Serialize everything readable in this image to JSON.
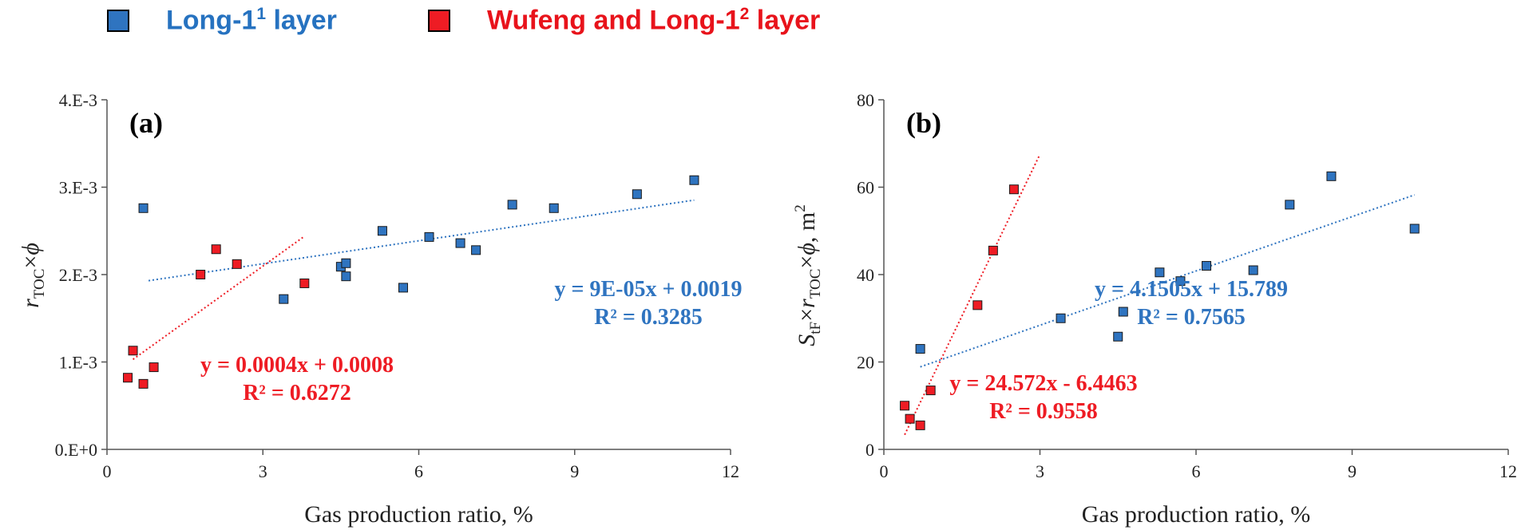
{
  "legend": [
    {
      "name": "Long-1",
      "sup": "1",
      "suffix": " layer",
      "color": "#2672c0",
      "swatch": "#2f74c0"
    },
    {
      "name": "Wufeng and Long-1",
      "sup": "2",
      "suffix": " layer",
      "color": "#e8131b",
      "swatch": "#ee1c24"
    }
  ],
  "chart_data": [
    {
      "type": "scatter",
      "panel_label": "(a)",
      "xlabel": "Gas production ratio, %",
      "ylabel": {
        "base": "r",
        "sub": "TOC",
        "rest": "×",
        "phi": "ϕ"
      },
      "xlim": [
        0,
        12
      ],
      "ylim": [
        0,
        0.004
      ],
      "xticks": [
        0,
        3,
        6,
        9,
        12
      ],
      "xtick_labels": [
        "0",
        "3",
        "6",
        "9",
        "12"
      ],
      "yticks": [
        0,
        0.001,
        0.002,
        0.003,
        0.004
      ],
      "ytick_labels": [
        "0.E+0",
        "1.E-3",
        "2.E-3",
        "3.E-3",
        "4.E-3"
      ],
      "series": [
        {
          "name": "Long-1¹ layer",
          "color": "#2f74c0",
          "x": [
            0.7,
            3.4,
            4.5,
            4.6,
            4.6,
            5.3,
            5.7,
            6.2,
            6.8,
            7.1,
            7.8,
            8.6,
            10.2,
            11.3
          ],
          "y": [
            0.00276,
            0.00172,
            0.00209,
            0.00213,
            0.00198,
            0.0025,
            0.00185,
            0.00243,
            0.00236,
            0.00228,
            0.0028,
            0.00276,
            0.00292,
            0.00308
          ],
          "trend_range": [
            0.8,
            11.3
          ],
          "equation": "y = 9E-05x + 0.0019",
          "r2": "R² = 0.3285"
        },
        {
          "name": "Wufeng and Long-1² layer",
          "color": "#ee1c24",
          "x": [
            0.4,
            0.5,
            0.7,
            0.9,
            1.8,
            2.1,
            2.5,
            3.8
          ],
          "y": [
            0.00082,
            0.00113,
            0.00075,
            0.00094,
            0.002,
            0.00229,
            0.00212,
            0.0019
          ],
          "trend_range": [
            0.5,
            3.8
          ],
          "equation": "y = 0.0004x + 0.0008",
          "r2": "R² = 0.6272"
        }
      ]
    },
    {
      "type": "scatter",
      "panel_label": "(b)",
      "xlabel": "Gas production ratio, %",
      "ylabel": {
        "pre": "S",
        "pre_sub": "tF",
        "mid": "×",
        "base": "r",
        "sub": "TOC",
        "rest": "×",
        "phi": "ϕ",
        "unit": ", m",
        "unit_sup": "2"
      },
      "xlim": [
        0,
        12
      ],
      "ylim": [
        0,
        80
      ],
      "xticks": [
        0,
        3,
        6,
        9,
        12
      ],
      "xtick_labels": [
        "0",
        "3",
        "6",
        "9",
        "12"
      ],
      "yticks": [
        0,
        20,
        40,
        60,
        80
      ],
      "ytick_labels": [
        "0",
        "20",
        "40",
        "60",
        "80"
      ],
      "series": [
        {
          "name": "Long-1¹ layer",
          "color": "#2f74c0",
          "x": [
            0.7,
            3.4,
            4.5,
            4.6,
            5.3,
            5.7,
            6.2,
            7.1,
            7.8,
            8.6,
            10.2
          ],
          "y": [
            23,
            30,
            25.8,
            31.5,
            40.5,
            38.5,
            42,
            41,
            56,
            62.5,
            50.5
          ],
          "trend_range": [
            0.7,
            10.2
          ],
          "equation": "y = 4.1505x + 15.789",
          "r2": "R² = 0.7565"
        },
        {
          "name": "Wufeng and Long-1² layer",
          "color": "#ee1c24",
          "x": [
            0.4,
            0.5,
            0.7,
            0.9,
            1.8,
            2.1,
            2.5
          ],
          "y": [
            10,
            7,
            5.5,
            13.5,
            33,
            45.5,
            59.5
          ],
          "trend_range": [
            0.4,
            3.0
          ],
          "equation": "y = 24.572x - 6.4463",
          "r2": "R² = 0.9558"
        }
      ]
    }
  ]
}
